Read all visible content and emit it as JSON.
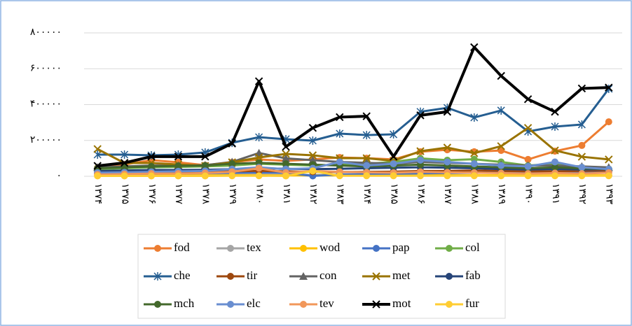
{
  "chart_data": {
    "type": "line",
    "categories": [
      "۱۳۷۴",
      "۱۳۷۵",
      "۱۳۷۶",
      "۱۳۷۷",
      "۱۳۷۸",
      "۱۳۷۹",
      "۱۳۸۰",
      "۱۳۸۱",
      "۱۳۸۲",
      "۱۳۸۳",
      "۱۳۸۴",
      "۱۳۸۵",
      "۱۳۸۶",
      "۱۳۸۷",
      "۱۳۸۸",
      "۱۳۸۹",
      "۱۳۹۰",
      "۱۳۹۱",
      "۱۳۹۲",
      "۱۳۹۳"
    ],
    "ylim": [
      0,
      800000
    ],
    "yticks": [
      {
        "value": 0,
        "label": "۰"
      },
      {
        "value": 200000,
        "label": "۲۰۰۰۰۰"
      },
      {
        "value": 400000,
        "label": "۴۰۰۰۰۰"
      },
      {
        "value": 600000,
        "label": "۶۰۰۰۰۰"
      },
      {
        "value": 800000,
        "label": "۸۰۰۰۰۰"
      }
    ],
    "grid": true,
    "legend": "bottom",
    "series": [
      {
        "name": "fod",
        "color": "#ed7d31",
        "marker": "circle",
        "values": [
          47000,
          66000,
          90000,
          78000,
          62000,
          78000,
          94000,
          86000,
          94000,
          105000,
          101000,
          94000,
          137000,
          148000,
          137000,
          144000,
          94000,
          140000,
          172000,
          304000
        ]
      },
      {
        "name": "tex",
        "color": "#a5a5a5",
        "marker": "circle",
        "values": [
          20000,
          18000,
          15000,
          14000,
          12000,
          12000,
          10000,
          9000,
          8000,
          8000,
          7000,
          7000,
          6000,
          6000,
          6000,
          5000,
          5000,
          5000,
          5000,
          5000
        ]
      },
      {
        "name": "wod",
        "color": "#ffc000",
        "marker": "circle",
        "values": [
          6000,
          5000,
          5000,
          5000,
          5000,
          6000,
          5000,
          5000,
          5000,
          5000,
          5000,
          5000,
          6000,
          6000,
          6000,
          6000,
          5000,
          5000,
          5000,
          6000
        ]
      },
      {
        "name": "pap",
        "color": "#4472c4",
        "marker": "circle",
        "values": [
          15000,
          14000,
          15000,
          16000,
          18000,
          20000,
          22000,
          20000,
          2000,
          10000,
          12000,
          14000,
          16000,
          18000,
          20000,
          22000,
          20000,
          22000,
          24000,
          26000
        ]
      },
      {
        "name": "col",
        "color": "#70ad47",
        "marker": "circle",
        "values": [
          40000,
          45000,
          50000,
          52000,
          55000,
          60000,
          70000,
          65000,
          60000,
          65000,
          70000,
          80000,
          100000,
          90000,
          95000,
          80000,
          60000,
          70000,
          50000,
          40000
        ]
      },
      {
        "name": "che",
        "color": "#255e91",
        "marker": "star",
        "values": [
          121000,
          121000,
          117000,
          121000,
          133000,
          187000,
          218000,
          207000,
          199000,
          238000,
          230000,
          234000,
          360000,
          382000,
          328000,
          367000,
          250000,
          277000,
          289000,
          488000
        ]
      },
      {
        "name": "tir",
        "color": "#9e480e",
        "marker": "circle",
        "values": [
          20000,
          22000,
          25000,
          25000,
          26000,
          28000,
          30000,
          28000,
          25000,
          24000,
          25000,
          26000,
          30000,
          30000,
          32000,
          30000,
          28000,
          28000,
          30000,
          32000
        ]
      },
      {
        "name": "con",
        "color": "#636363",
        "marker": "triangle",
        "values": [
          50000,
          55000,
          60000,
          60000,
          62000,
          80000,
          130000,
          100000,
          90000,
          80000,
          75000,
          70000,
          80000,
          75000,
          70000,
          65000,
          60000,
          60000,
          55000,
          50000
        ]
      },
      {
        "name": "met",
        "color": "#997300",
        "marker": "x",
        "values": [
          152000,
          74000,
          74000,
          66000,
          58000,
          78000,
          105000,
          125000,
          117000,
          101000,
          101000,
          86000,
          140000,
          160000,
          129000,
          168000,
          270000,
          144000,
          109000,
          94000
        ]
      },
      {
        "name": "fab",
        "color": "#264478",
        "marker": "circle",
        "values": [
          30000,
          32000,
          35000,
          35000,
          36000,
          40000,
          45000,
          42000,
          40000,
          42000,
          45000,
          48000,
          50000,
          48000,
          45000,
          40000,
          38000,
          40000,
          38000,
          40000
        ]
      },
      {
        "name": "mch",
        "color": "#43682b",
        "marker": "circle",
        "values": [
          45000,
          50000,
          55000,
          58000,
          60000,
          70000,
          75000,
          70000,
          65000,
          60000,
          55000,
          60000,
          65000,
          60000,
          55000,
          50000,
          45000,
          50000,
          45000,
          40000
        ]
      },
      {
        "name": "elc",
        "color": "#698ed0",
        "marker": "circle",
        "values": [
          20000,
          22000,
          25000,
          28000,
          30000,
          40000,
          50000,
          40000,
          45000,
          80000,
          60000,
          70000,
          90000,
          80000,
          70000,
          60000,
          55000,
          80000,
          50000,
          40000
        ]
      },
      {
        "name": "tev",
        "color": "#f1975a",
        "marker": "circle",
        "values": [
          10000,
          12000,
          15000,
          15000,
          18000,
          25000,
          45000,
          20000,
          30000,
          25000,
          22000,
          20000,
          25000,
          22000,
          20000,
          18000,
          15000,
          18000,
          15000,
          20000
        ]
      },
      {
        "name": "mot",
        "color": "#000000",
        "marker": "x",
        "values": [
          58000,
          75000,
          110000,
          110000,
          110000,
          183000,
          530000,
          165000,
          270000,
          330000,
          335000,
          110000,
          340000,
          360000,
          720000,
          560000,
          430000,
          360000,
          490000,
          495000
        ]
      },
      {
        "name": "fur",
        "color": "#ffcd33",
        "marker": "circle",
        "values": [
          2000,
          2000,
          2000,
          2000,
          2000,
          3000,
          3000,
          2000,
          30000,
          3000,
          3000,
          3000,
          3000,
          3000,
          3000,
          3000,
          3000,
          3000,
          3000,
          3000
        ]
      }
    ]
  }
}
